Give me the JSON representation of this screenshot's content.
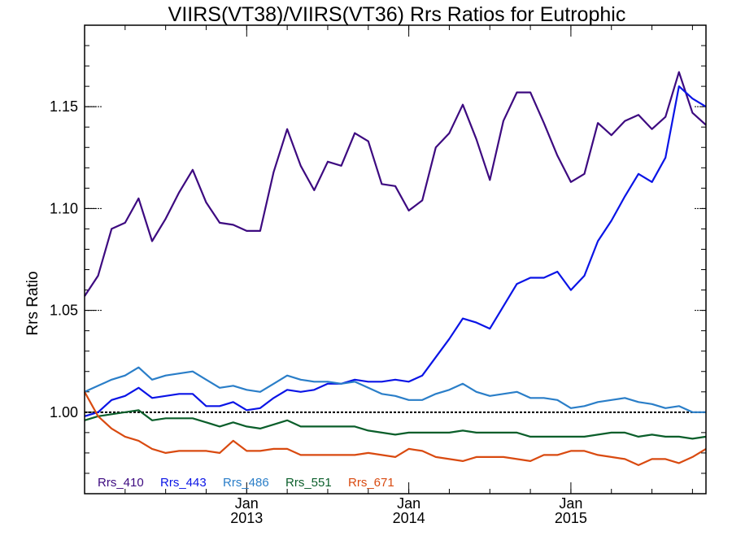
{
  "chart_data": {
    "type": "line",
    "title": "VIIRS(VT38)/VIIRS(VT36)  Rrs Ratios for Eutrophic",
    "ylabel": "Rrs Ratio",
    "xlabel": "",
    "xlim": [
      "2012-01",
      "2015-11"
    ],
    "ylim": [
      0.96,
      1.19
    ],
    "yticks": [
      "1.00",
      "1.05",
      "1.10",
      "1.15"
    ],
    "xticks": [
      {
        "month": "2013-01",
        "label1": "Jan",
        "label2": "2013"
      },
      {
        "month": "2014-01",
        "label1": "Jan",
        "label2": "2014"
      },
      {
        "month": "2015-01",
        "label1": "Jan",
        "label2": "2015"
      }
    ],
    "reference_line": 1.0,
    "legend_position": "bottom-left",
    "x": [
      "2012-01",
      "2012-02",
      "2012-03",
      "2012-04",
      "2012-05",
      "2012-06",
      "2012-07",
      "2012-08",
      "2012-09",
      "2012-10",
      "2012-11",
      "2012-12",
      "2013-01",
      "2013-02",
      "2013-03",
      "2013-04",
      "2013-05",
      "2013-06",
      "2013-07",
      "2013-08",
      "2013-09",
      "2013-10",
      "2013-11",
      "2013-12",
      "2014-01",
      "2014-02",
      "2014-03",
      "2014-04",
      "2014-05",
      "2014-06",
      "2014-07",
      "2014-08",
      "2014-09",
      "2014-10",
      "2014-11",
      "2014-12",
      "2015-01",
      "2015-02",
      "2015-03",
      "2015-04",
      "2015-05",
      "2015-06",
      "2015-07",
      "2015-08",
      "2015-09",
      "2015-10",
      "2015-11"
    ],
    "series": [
      {
        "name": "Rrs_410",
        "color": "#3d0a80",
        "values": [
          1.057,
          1.067,
          1.09,
          1.093,
          1.105,
          1.084,
          1.095,
          1.108,
          1.119,
          1.103,
          1.093,
          1.092,
          1.089,
          1.089,
          1.118,
          1.139,
          1.121,
          1.109,
          1.123,
          1.121,
          1.137,
          1.133,
          1.112,
          1.111,
          1.099,
          1.104,
          1.13,
          1.137,
          1.151,
          1.134,
          1.114,
          1.143,
          1.157,
          1.157,
          1.142,
          1.126,
          1.113,
          1.117,
          1.142,
          1.136,
          1.143,
          1.146,
          1.139,
          1.145,
          1.167,
          1.147,
          1.141
        ]
      },
      {
        "name": "Rrs_443",
        "color": "#0a14e6",
        "values": [
          0.998,
          1.0,
          1.006,
          1.008,
          1.012,
          1.007,
          1.008,
          1.009,
          1.009,
          1.003,
          1.003,
          1.005,
          1.001,
          1.002,
          1.007,
          1.011,
          1.01,
          1.011,
          1.014,
          1.014,
          1.016,
          1.015,
          1.015,
          1.016,
          1.015,
          1.018,
          1.027,
          1.036,
          1.046,
          1.044,
          1.041,
          1.052,
          1.063,
          1.066,
          1.066,
          1.069,
          1.06,
          1.067,
          1.084,
          1.094,
          1.106,
          1.117,
          1.113,
          1.125,
          1.16,
          1.154,
          1.15
        ]
      },
      {
        "name": "Rrs_486",
        "color": "#2a7ec8",
        "values": [
          1.01,
          1.013,
          1.016,
          1.018,
          1.022,
          1.016,
          1.018,
          1.019,
          1.02,
          1.016,
          1.012,
          1.013,
          1.011,
          1.01,
          1.014,
          1.018,
          1.016,
          1.015,
          1.015,
          1.014,
          1.015,
          1.012,
          1.009,
          1.008,
          1.006,
          1.006,
          1.009,
          1.011,
          1.014,
          1.01,
          1.008,
          1.009,
          1.01,
          1.007,
          1.007,
          1.006,
          1.002,
          1.003,
          1.005,
          1.006,
          1.007,
          1.005,
          1.004,
          1.002,
          1.003,
          1.0,
          1.0
        ]
      },
      {
        "name": "Rrs_551",
        "color": "#0a5e2a",
        "values": [
          0.996,
          0.998,
          0.999,
          1.0,
          1.001,
          0.996,
          0.997,
          0.997,
          0.997,
          0.995,
          0.993,
          0.995,
          0.993,
          0.992,
          0.994,
          0.996,
          0.993,
          0.993,
          0.993,
          0.993,
          0.993,
          0.991,
          0.99,
          0.989,
          0.99,
          0.99,
          0.99,
          0.99,
          0.991,
          0.99,
          0.99,
          0.99,
          0.99,
          0.988,
          0.988,
          0.988,
          0.988,
          0.988,
          0.989,
          0.99,
          0.99,
          0.988,
          0.989,
          0.988,
          0.988,
          0.987,
          0.988
        ]
      },
      {
        "name": "Rrs_671",
        "color": "#d94a10",
        "values": [
          1.01,
          0.998,
          0.992,
          0.988,
          0.986,
          0.982,
          0.98,
          0.981,
          0.981,
          0.981,
          0.98,
          0.986,
          0.981,
          0.981,
          0.982,
          0.982,
          0.979,
          0.979,
          0.979,
          0.979,
          0.979,
          0.98,
          0.979,
          0.978,
          0.982,
          0.981,
          0.978,
          0.977,
          0.976,
          0.978,
          0.978,
          0.978,
          0.977,
          0.976,
          0.979,
          0.979,
          0.981,
          0.981,
          0.979,
          0.978,
          0.977,
          0.974,
          0.977,
          0.977,
          0.975,
          0.978,
          0.982
        ]
      }
    ]
  }
}
